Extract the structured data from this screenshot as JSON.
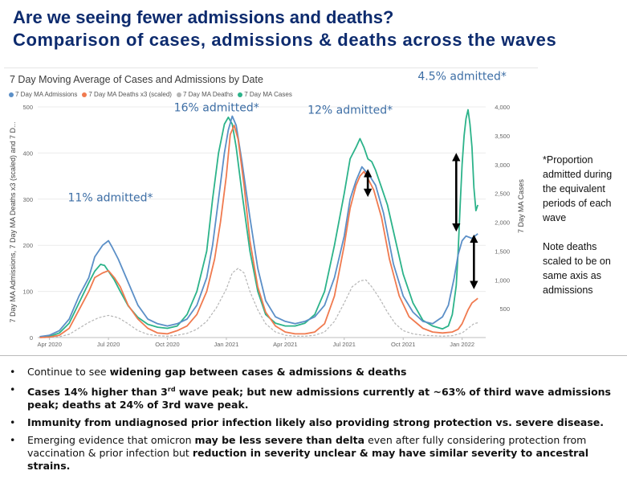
{
  "slide": {
    "title_line1": "Are we seeing fewer admissions and deaths?",
    "title_line2": "Comparison of cases, admissions & deaths across the waves"
  },
  "chart_data": {
    "type": "line",
    "title": "7 Day Moving Average of Cases and Admissions by Date",
    "legend": [
      {
        "name": "7 Day MA Admissions",
        "color": "#5b8fc7"
      },
      {
        "name": "7 Day MA Deaths x3 (scaled)",
        "color": "#f07a4f"
      },
      {
        "name": "7 Day MA Deaths",
        "color": "#b5b5b5"
      },
      {
        "name": "7 Day MA Cases",
        "color": "#2cb38a"
      }
    ],
    "legend_placement": "top-left",
    "ylabel_left": "7 Day MA Admissions, 7 Day MA Deaths x3 (scaled) and 7 D...",
    "ylabel_right": "7 Day MA Cases",
    "x_ticks": [
      "Apr 2020",
      "Jul 2020",
      "Oct 2020",
      "Jan 2021",
      "Apr 2021",
      "Jul 2021",
      "Oct 2021",
      "Jan 2022"
    ],
    "x_tick_months": [
      0,
      3,
      6,
      9,
      12,
      15,
      18,
      21
    ],
    "y_left_ticks": [
      0,
      100,
      200,
      300,
      400,
      500
    ],
    "y_left_range": [
      0,
      500
    ],
    "y_right_ticks": [
      "500",
      "1,000",
      "1,500",
      "2,000",
      "2,500",
      "3,000",
      "3,500",
      "4,000"
    ],
    "y_right_range": [
      0,
      4000
    ],
    "x_range_months": [
      -0.6,
      22.2
    ],
    "grid": true,
    "series": [
      {
        "name": "7 Day MA Admissions",
        "axis": "left",
        "color": "#5b8fc7",
        "x": [
          -0.5,
          0,
          0.5,
          1,
          1.5,
          2,
          2.3,
          2.7,
          3,
          3.2,
          3.5,
          4,
          4.5,
          5,
          5.5,
          6,
          6.5,
          7,
          7.5,
          8,
          8.3,
          8.6,
          8.9,
          9.1,
          9.3,
          9.5,
          9.8,
          10.2,
          10.6,
          11,
          11.5,
          12,
          12.5,
          13,
          13.5,
          14,
          14.5,
          15,
          15.3,
          15.6,
          15.9,
          16.1,
          16.3,
          16.6,
          17,
          17.5,
          18,
          18.5,
          19,
          19.5,
          20,
          20.3,
          20.6,
          20.8,
          21,
          21.2,
          21.5,
          21.8
        ],
        "y": [
          2,
          5,
          15,
          40,
          90,
          130,
          175,
          200,
          210,
          195,
          170,
          120,
          70,
          40,
          30,
          25,
          30,
          40,
          70,
          130,
          200,
          300,
          400,
          450,
          480,
          460,
          380,
          260,
          150,
          80,
          45,
          35,
          30,
          35,
          45,
          70,
          130,
          220,
          300,
          340,
          370,
          360,
          350,
          330,
          270,
          160,
          90,
          55,
          35,
          30,
          45,
          70,
          130,
          180,
          210,
          220,
          215,
          225
        ]
      },
      {
        "name": "7 Day MA Deaths x3 (scaled)",
        "axis": "left",
        "color": "#f07a4f",
        "x": [
          -0.5,
          0,
          0.5,
          1,
          1.5,
          2,
          2.3,
          2.7,
          3,
          3.3,
          3.6,
          4,
          4.5,
          5,
          5.5,
          6,
          6.5,
          7,
          7.5,
          8,
          8.4,
          8.7,
          9,
          9.2,
          9.4,
          9.6,
          9.9,
          10.2,
          10.6,
          11,
          11.5,
          12,
          12.5,
          13,
          13.5,
          14,
          14.5,
          15,
          15.3,
          15.6,
          15.8,
          16,
          16.2,
          16.5,
          16.9,
          17.3,
          17.8,
          18.3,
          19,
          19.5,
          20,
          20.5,
          20.8,
          21,
          21.3,
          21.5,
          21.8
        ],
        "y": [
          0,
          1,
          5,
          20,
          60,
          100,
          130,
          140,
          145,
          130,
          110,
          70,
          40,
          20,
          10,
          8,
          15,
          25,
          50,
          100,
          170,
          250,
          350,
          440,
          460,
          430,
          330,
          210,
          110,
          55,
          25,
          12,
          8,
          8,
          12,
          30,
          90,
          200,
          280,
          330,
          350,
          360,
          345,
          320,
          260,
          170,
          90,
          45,
          20,
          12,
          10,
          12,
          18,
          30,
          60,
          75,
          85
        ]
      },
      {
        "name": "7 Day MA Deaths",
        "axis": "left",
        "color": "#b5b5b5",
        "x": [
          -0.5,
          0,
          0.5,
          1,
          1.5,
          2,
          2.5,
          3,
          3.5,
          4,
          4.5,
          5,
          5.5,
          6,
          6.5,
          7,
          7.5,
          8,
          8.5,
          9,
          9.3,
          9.6,
          9.9,
          10.2,
          10.6,
          11,
          11.5,
          12,
          12.5,
          13,
          13.5,
          14,
          14.5,
          15,
          15.4,
          15.8,
          16.1,
          16.4,
          16.8,
          17.2,
          17.6,
          18,
          18.5,
          19,
          19.5,
          20,
          20.5,
          21,
          21.3,
          21.6,
          21.8
        ],
        "y": [
          0,
          0,
          2,
          7,
          20,
          33,
          43,
          48,
          43,
          30,
          15,
          7,
          4,
          3,
          5,
          9,
          18,
          35,
          65,
          105,
          140,
          150,
          140,
          100,
          60,
          30,
          12,
          5,
          3,
          3,
          5,
          12,
          35,
          75,
          110,
          123,
          125,
          110,
          85,
          55,
          30,
          15,
          8,
          5,
          4,
          3,
          4,
          10,
          20,
          30,
          32
        ]
      },
      {
        "name": "7 Day MA Cases",
        "axis": "right",
        "color": "#2cb38a",
        "x": [
          -0.5,
          0,
          0.5,
          1,
          1.5,
          2,
          2.3,
          2.6,
          2.8,
          3,
          3.3,
          3.6,
          4,
          4.5,
          5,
          5.5,
          6,
          6.5,
          7,
          7.5,
          8,
          8.3,
          8.6,
          8.9,
          9.1,
          9.3,
          9.5,
          9.8,
          10.2,
          10.6,
          11,
          11.5,
          12,
          12.5,
          13,
          13.5,
          14,
          14.5,
          15,
          15.3,
          15.6,
          15.8,
          16,
          16.2,
          16.4,
          16.6,
          16.9,
          17.2,
          17.6,
          18,
          18.5,
          19,
          19.5,
          20,
          20.3,
          20.5,
          20.7,
          20.8,
          20.9,
          21,
          21.1,
          21.2,
          21.3,
          21.4,
          21.5,
          21.6,
          21.7,
          21.8
        ],
        "y": [
          5,
          20,
          80,
          250,
          600,
          950,
          1150,
          1270,
          1250,
          1150,
          1000,
          800,
          550,
          350,
          230,
          180,
          160,
          200,
          400,
          800,
          1500,
          2400,
          3200,
          3700,
          3820,
          3700,
          3300,
          2500,
          1500,
          800,
          400,
          250,
          200,
          200,
          250,
          400,
          800,
          1600,
          2500,
          3100,
          3300,
          3450,
          3300,
          3100,
          3050,
          2900,
          2600,
          2300,
          1700,
          1100,
          600,
          300,
          200,
          150,
          200,
          400,
          900,
          1500,
          2300,
          3000,
          3500,
          3800,
          3950,
          3700,
          3300,
          2600,
          2200,
          2300
        ]
      }
    ],
    "annotations": [
      {
        "text": "11% admitted*",
        "x": 3.1,
        "y": 295
      },
      {
        "text": "16% admitted*",
        "x": 8.5,
        "y": 490
      },
      {
        "text": "12% admitted*",
        "x": 15.3,
        "y": 485
      },
      {
        "text": "4.5% admitted*",
        "x": 21.0,
        "y": 558
      }
    ],
    "arrows": [
      {
        "x": 16.2,
        "y1": 365,
        "y2": 305
      },
      {
        "x": 20.7,
        "y1": 400,
        "y2": 230
      },
      {
        "x": 21.6,
        "y1": 223,
        "y2": 105
      }
    ]
  },
  "side_note": {
    "paragraph1": "*Proportion\nadmitted during\nthe equivalent\nperiods of each\nwave",
    "paragraph2": "Note deaths\nscaled to be on\nsame axis as\nadmissions"
  },
  "bullets": [
    {
      "parts": [
        {
          "t": "Continue to see ",
          "b": false
        },
        {
          "t": "widening gap between cases & admissions & deaths",
          "b": true
        }
      ]
    },
    {
      "parts": [
        {
          "t": "Cases 14% higher than 3",
          "b": true
        },
        {
          "t": "rd",
          "b": true,
          "sup": true
        },
        {
          "t": " wave peak; but new admissions currently at ~63% of third wave admissions peak; deaths at 24% of 3rd wave peak.",
          "b": true
        }
      ]
    },
    {
      "parts": [
        {
          "t": "Immunity from undiagnosed prior infection likely also providing strong protection vs. severe disease.",
          "b": true
        }
      ]
    },
    {
      "parts": [
        {
          "t": "Emerging evidence that omicron ",
          "b": false
        },
        {
          "t": "may be less severe than delta",
          "b": true
        },
        {
          "t": " even after fully considering protection from vaccination & prior infection but ",
          "b": false
        },
        {
          "t": "reduction in severity unclear & may have similar severity to ancestral strains.",
          "b": true
        }
      ]
    }
  ]
}
